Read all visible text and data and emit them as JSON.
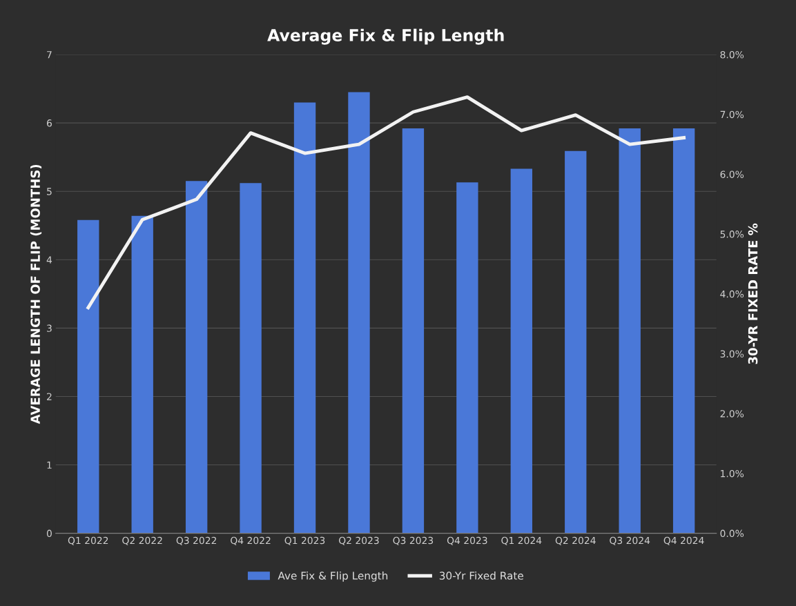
{
  "chart_data": {
    "type": "bar",
    "title": "Average Fix & Flip Length",
    "categories": [
      "Q1 2022",
      "Q2 2022",
      "Q3 2022",
      "Q4 2022",
      "Q1 2023",
      "Q2 2023",
      "Q3 2023",
      "Q4 2023",
      "Q1 2024",
      "Q2 2024",
      "Q3 2024",
      "Q4 2024"
    ],
    "series": [
      {
        "name": "Ave Fix & Flip Length",
        "color": "#4a78d8",
        "values": [
          4.58,
          4.64,
          5.15,
          5.12,
          6.3,
          6.45,
          5.92,
          5.13,
          5.33,
          5.59,
          5.92,
          5.92
        ]
      },
      {
        "name": "30-Yr Fixed Rate",
        "type": "line",
        "axis": "y2",
        "color": "#f2f2f2",
        "values": [
          3.77,
          5.24,
          5.58,
          6.69,
          6.35,
          6.5,
          7.04,
          7.29,
          6.73,
          6.99,
          6.5,
          6.61
        ]
      }
    ],
    "ylabel": "AVERAGE LENGTH OF FLIP (MONTHS)",
    "y2label": "30-YR FIXED RATE %",
    "ylim": [
      0,
      7
    ],
    "yticks": [
      0,
      1,
      2,
      3,
      4,
      5,
      6,
      7
    ],
    "y2lim": [
      0,
      8
    ],
    "y2ticks": [
      {
        "value": 0,
        "label": "0.0%"
      },
      {
        "value": 1,
        "label": "1.0%"
      },
      {
        "value": 2,
        "label": "2.0%"
      },
      {
        "value": 3,
        "label": "3.0%"
      },
      {
        "value": 4,
        "label": "4.0%"
      },
      {
        "value": 5,
        "label": "5.0%"
      },
      {
        "value": 6,
        "label": "6.0%"
      },
      {
        "value": 7,
        "label": "7.0%"
      },
      {
        "value": 8,
        "label": "8.0%"
      }
    ],
    "grid": "y",
    "legend": "bottom",
    "marker": "none",
    "line_style": "solid"
  }
}
